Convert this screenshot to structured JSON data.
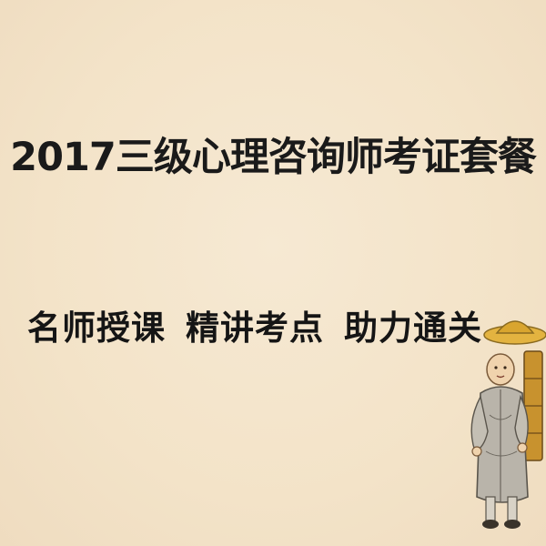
{
  "title": "2017三级心理咨询师考证套餐",
  "slogan": {
    "phrases": [
      "名师授课",
      "精讲考点",
      "助力通关"
    ]
  },
  "illustration": {
    "icon": "monk-illustration"
  },
  "colors": {
    "background": "#f3e4cb",
    "text": "#1a1a1a"
  }
}
